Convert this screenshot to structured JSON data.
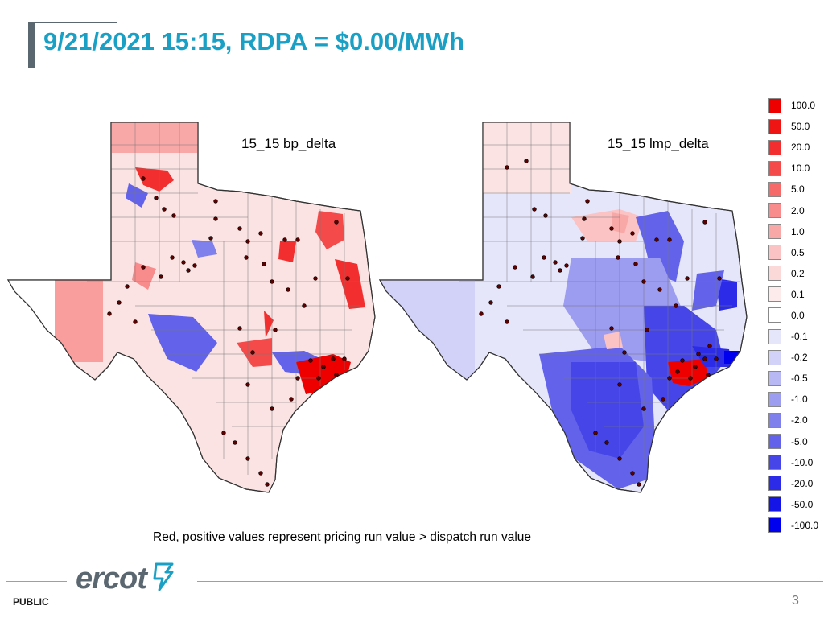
{
  "slide": {
    "title": "9/21/2021 15:15, RDPA = $0.00/MWh",
    "caption": "Red, positive values represent pricing run value > dispatch run value",
    "footer_label": "PUBLIC",
    "page_number": "3",
    "logo_text": "ercot"
  },
  "maps": [
    {
      "label": "15_15 bp_delta"
    },
    {
      "label": "15_15 lmp_delta"
    }
  ],
  "legend": [
    {
      "label": "100.0",
      "color": "#ee0000"
    },
    {
      "label": "50.0",
      "color": "#f01515"
    },
    {
      "label": "20.0",
      "color": "#f22e2e"
    },
    {
      "label": "10.0",
      "color": "#f44a4a"
    },
    {
      "label": "5.0",
      "color": "#f66a6a"
    },
    {
      "label": "2.0",
      "color": "#f88b8b"
    },
    {
      "label": "1.0",
      "color": "#f9a8a8"
    },
    {
      "label": "0.5",
      "color": "#fbc3c3"
    },
    {
      "label": "0.2",
      "color": "#fcd9d9"
    },
    {
      "label": "0.1",
      "color": "#fdeaea"
    },
    {
      "label": "0.0",
      "color": "#ffffff"
    },
    {
      "label": "-0.1",
      "color": "#e6e6fb"
    },
    {
      "label": "-0.2",
      "color": "#d2d2f8"
    },
    {
      "label": "-0.5",
      "color": "#b8b8f4"
    },
    {
      "label": "-1.0",
      "color": "#9c9cf0"
    },
    {
      "label": "-2.0",
      "color": "#8080ec"
    },
    {
      "label": "-5.0",
      "color": "#6262ea"
    },
    {
      "label": "-10.0",
      "color": "#4646e8"
    },
    {
      "label": "-20.0",
      "color": "#2b2be8"
    },
    {
      "label": "-50.0",
      "color": "#1515e8"
    },
    {
      "label": "-100.0",
      "color": "#0000ee"
    }
  ],
  "colors": {
    "title": "#1aa0c4",
    "accent_bar": "#5b6770",
    "logo": "#5b6770",
    "logo_mark": "#1aa0c4"
  }
}
